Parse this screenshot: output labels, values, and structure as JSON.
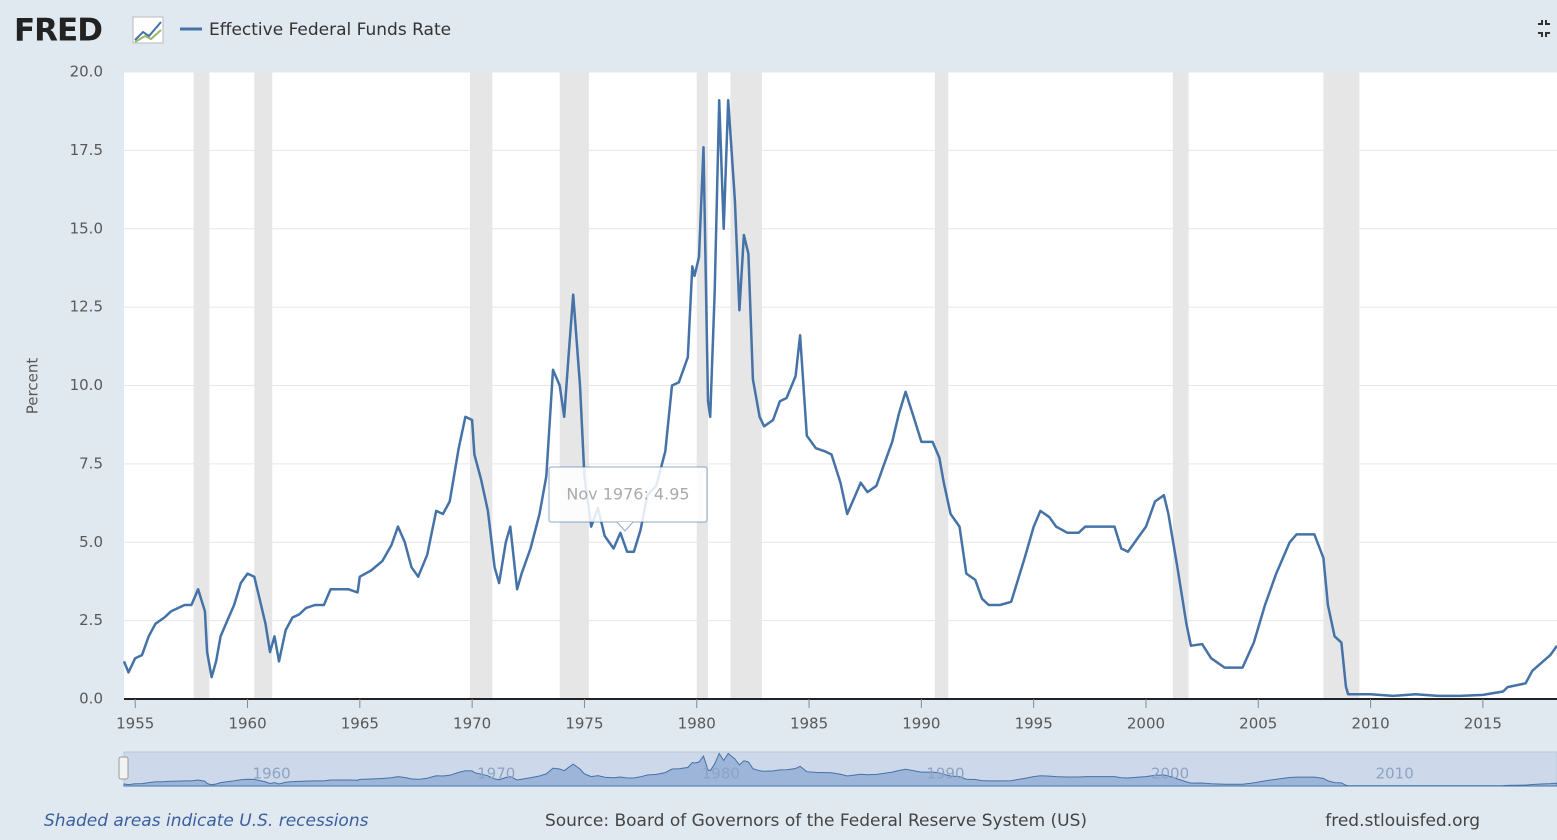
{
  "logo": "FRED",
  "chart_data": {
    "type": "line",
    "ylabel": "Percent",
    "series": [
      {
        "name": "Effective Federal Funds Rate",
        "color": "#4572a7",
        "values": [
          1.2,
          0.85,
          1.3,
          1.4,
          2.0,
          2.4,
          2.6,
          2.8,
          2.9,
          3.0,
          3.0,
          3.5,
          2.8,
          1.5,
          0.7,
          1.2,
          2.0,
          2.5,
          3.0,
          3.7,
          4.0,
          3.9,
          3.3,
          2.4,
          1.5,
          2.0,
          1.2,
          2.2,
          2.6,
          2.7,
          2.9,
          3.0,
          3.0,
          3.5,
          3.5,
          3.5,
          3.4,
          3.9,
          4.1,
          4.4,
          4.9,
          5.5,
          5.0,
          4.2,
          3.9,
          4.6,
          6.0,
          5.9,
          6.3,
          8.0,
          9.0,
          8.9,
          7.8,
          7.0,
          6.0,
          4.2,
          3.7,
          5.0,
          5.5,
          3.5,
          4.0,
          4.8,
          5.9,
          7.1,
          10.5,
          10.0,
          9.0,
          11.0,
          12.9,
          10.0,
          7.1,
          5.5,
          6.1,
          5.2,
          4.8,
          5.3,
          4.7,
          4.7,
          5.4,
          6.5,
          6.8,
          7.9,
          10.0,
          10.1,
          10.9,
          13.8,
          13.5,
          14.1,
          17.6,
          9.5,
          9.0,
          13.0,
          19.1,
          15.0,
          19.1,
          15.9,
          12.4,
          14.8,
          14.2,
          10.2,
          9.0,
          8.7,
          8.9,
          9.5,
          9.6,
          10.3,
          11.6,
          8.4,
          8.0,
          7.9,
          7.8,
          6.9,
          5.9,
          6.4,
          6.9,
          6.6,
          6.8,
          7.6,
          8.2,
          9.1,
          9.8,
          8.9,
          8.2,
          8.2,
          7.7,
          6.9,
          5.9,
          5.5,
          4.0,
          3.8,
          3.2,
          3.0,
          3.0,
          3.1,
          3.8,
          4.5,
          5.5,
          6.0,
          5.8,
          5.5,
          5.3,
          5.3,
          5.5,
          5.5,
          5.5,
          4.8,
          4.7,
          5.1,
          5.5,
          6.3,
          6.5,
          5.9,
          4.2,
          2.4,
          1.7,
          1.75,
          1.3,
          1.0,
          1.0,
          1.8,
          3.0,
          4.0,
          5.0,
          5.25,
          5.25,
          4.5,
          3.0,
          2.0,
          1.8,
          0.4,
          0.15,
          0.15,
          0.1,
          0.15,
          0.1,
          0.1,
          0.13,
          0.24,
          0.38,
          0.5,
          0.9,
          1.15,
          1.4,
          1.7
        ]
      }
    ],
    "x": [
      1954.5,
      1954.7,
      1955.0,
      1955.3,
      1955.6,
      1955.9,
      1956.3,
      1956.6,
      1956.9,
      1957.2,
      1957.5,
      1957.8,
      1958.1,
      1958.2,
      1958.4,
      1958.6,
      1958.8,
      1959.1,
      1959.4,
      1959.7,
      1960.0,
      1960.3,
      1960.5,
      1960.8,
      1961.0,
      1961.2,
      1961.4,
      1961.7,
      1962.0,
      1962.3,
      1962.6,
      1963.0,
      1963.4,
      1963.7,
      1964.0,
      1964.5,
      1964.9,
      1965.0,
      1965.5,
      1966.0,
      1966.4,
      1966.7,
      1967.0,
      1967.3,
      1967.6,
      1968.0,
      1968.4,
      1968.7,
      1969.0,
      1969.4,
      1969.7,
      1970.0,
      1970.1,
      1970.4,
      1970.7,
      1971.0,
      1971.2,
      1971.5,
      1971.7,
      1972.0,
      1972.2,
      1972.6,
      1973.0,
      1973.3,
      1973.6,
      1973.9,
      1974.1,
      1974.3,
      1974.5,
      1974.8,
      1975.0,
      1975.3,
      1975.6,
      1975.9,
      1976.3,
      1976.6,
      1976.9,
      1977.2,
      1977.5,
      1977.8,
      1978.2,
      1978.6,
      1978.9,
      1979.2,
      1979.6,
      1979.8,
      1979.9,
      1980.1,
      1980.3,
      1980.5,
      1980.6,
      1980.8,
      1981.0,
      1981.2,
      1981.4,
      1981.7,
      1981.9,
      1982.1,
      1982.3,
      1982.5,
      1982.8,
      1983.0,
      1983.4,
      1983.7,
      1984.0,
      1984.4,
      1984.6,
      1984.9,
      1985.3,
      1985.7,
      1986.0,
      1986.4,
      1986.7,
      1987.0,
      1987.3,
      1987.6,
      1988.0,
      1988.4,
      1988.7,
      1989.0,
      1989.3,
      1989.7,
      1990.0,
      1990.5,
      1990.8,
      1991.0,
      1991.3,
      1991.7,
      1992.0,
      1992.4,
      1992.7,
      1993.0,
      1993.5,
      1994.0,
      1994.3,
      1994.6,
      1995.0,
      1995.3,
      1995.7,
      1996.0,
      1996.5,
      1997.0,
      1997.3,
      1998.0,
      1998.6,
      1998.9,
      1999.2,
      1999.6,
      2000.0,
      2000.4,
      2000.8,
      2001.0,
      2001.4,
      2001.8,
      2002.0,
      2002.5,
      2002.9,
      2003.5,
      2004.3,
      2004.8,
      2005.3,
      2005.8,
      2006.4,
      2006.7,
      2007.5,
      2007.9,
      2008.1,
      2008.4,
      2008.7,
      2008.9,
      2009.0,
      2010.0,
      2011.0,
      2012.0,
      2013.0,
      2014.0,
      2015.0,
      2015.9,
      2016.1,
      2016.9,
      2017.2,
      2017.6,
      2018.0,
      2018.3
    ],
    "recessions": [
      [
        1957.6,
        1958.3
      ],
      [
        1960.3,
        1961.1
      ],
      [
        1969.9,
        1970.9
      ],
      [
        1973.9,
        1975.2
      ],
      [
        1980.0,
        1980.5
      ],
      [
        1981.5,
        1982.9
      ],
      [
        1990.6,
        1991.2
      ],
      [
        2001.2,
        2001.9
      ],
      [
        2007.9,
        2009.5
      ]
    ],
    "xlim": [
      1954.5,
      2018.3
    ],
    "ylim": [
      0,
      20
    ],
    "xticks": [
      1955,
      1960,
      1965,
      1970,
      1975,
      1980,
      1985,
      1990,
      1995,
      2000,
      2005,
      2010,
      2015
    ],
    "yticks": [
      {
        "value": 0,
        "label": "0.0"
      },
      2.5,
      {
        "value": 5,
        "label": "5.0"
      },
      7.5,
      {
        "value": 10,
        "label": "10.0"
      },
      12.5,
      {
        "value": 15,
        "label": "15.0"
      },
      17.5,
      {
        "value": 20,
        "label": "20.0"
      }
    ],
    "grid": true,
    "tooltip": "Nov 1976: 4.95",
    "navigator_ticks": [
      1960,
      1970,
      1980,
      1990,
      2000,
      2010
    ]
  },
  "footer": {
    "note": "Shaded areas indicate U.S. recessions",
    "source": "Source: Board of Governors of the Federal Reserve System (US)",
    "site": "fred.stlouisfed.org"
  }
}
